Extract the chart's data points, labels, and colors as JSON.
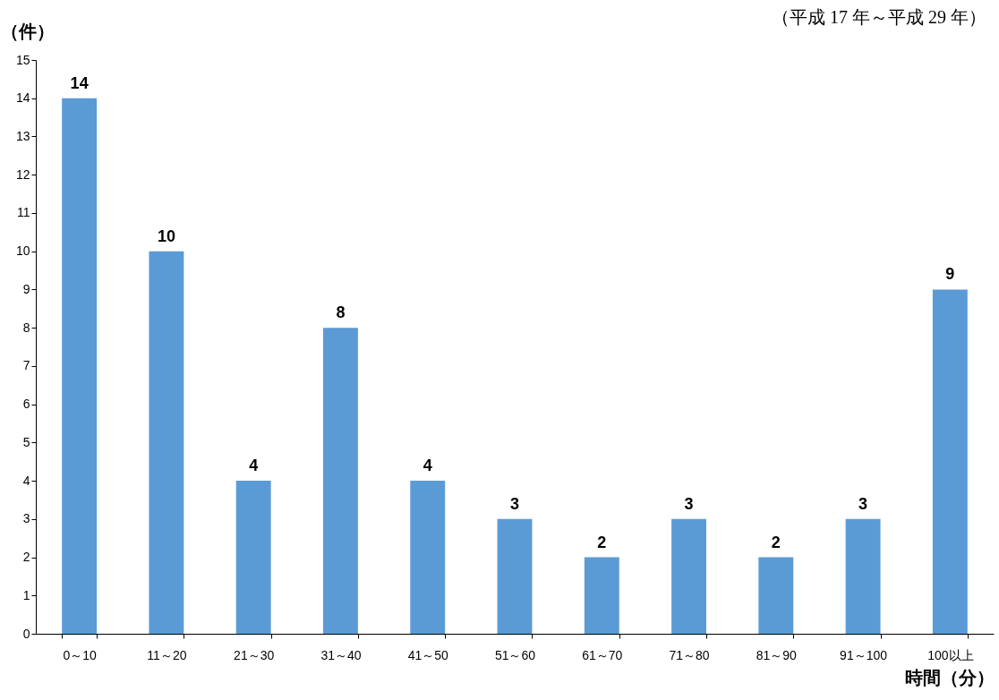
{
  "chart_data": {
    "type": "bar",
    "subtitle": "（平成 17 年～平成 29 年）",
    "ylabel": "（件）",
    "xlabel": "時間（分）",
    "categories": [
      "0～10",
      "11～20",
      "21～30",
      "31～40",
      "41～50",
      "51～60",
      "61～70",
      "71～80",
      "81～90",
      "91～100",
      "100以上"
    ],
    "values": [
      14,
      10,
      4,
      8,
      4,
      3,
      2,
      3,
      2,
      3,
      9
    ],
    "color": "#5b9bd5",
    "ylim": [
      0,
      15
    ],
    "yticks": [
      0,
      1,
      2,
      3,
      4,
      5,
      6,
      7,
      8,
      9,
      10,
      11,
      12,
      13,
      14,
      15
    ],
    "grid": false,
    "data_labels": true
  }
}
